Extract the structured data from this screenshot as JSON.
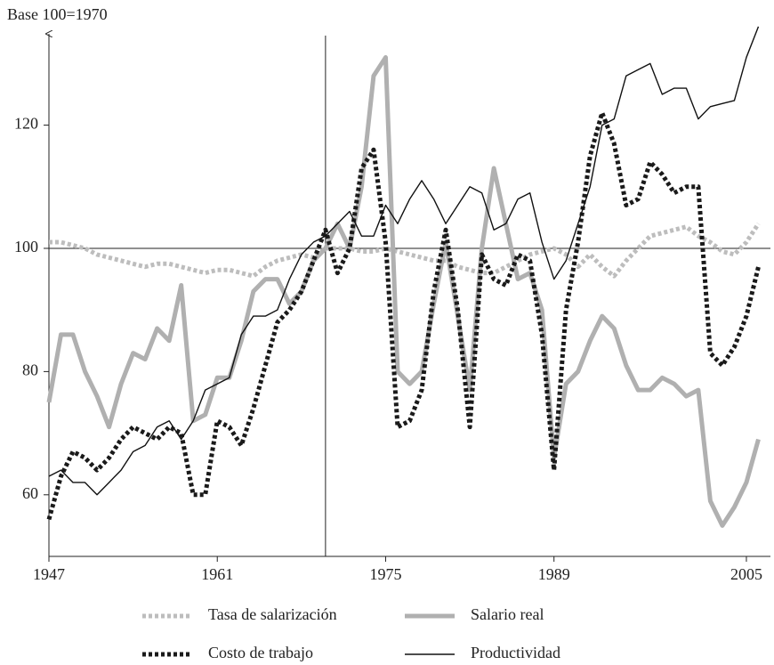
{
  "chart_data": {
    "type": "line",
    "y_label": "Base 100=1970",
    "x": [
      1947,
      1948,
      1949,
      1950,
      1951,
      1952,
      1953,
      1954,
      1955,
      1956,
      1957,
      1958,
      1959,
      1960,
      1961,
      1962,
      1963,
      1964,
      1965,
      1966,
      1967,
      1968,
      1969,
      1970,
      1971,
      1972,
      1973,
      1974,
      1975,
      1976,
      1977,
      1978,
      1979,
      1980,
      1981,
      1982,
      1983,
      1984,
      1985,
      1986,
      1987,
      1988,
      1989,
      1990,
      1991,
      1992,
      1993,
      1994,
      1995,
      1996,
      1997,
      1998,
      1999,
      2000,
      2001,
      2002,
      2003,
      2004,
      2005,
      2006
    ],
    "series": [
      {
        "name": "Tasa de salarización",
        "color": "#bdbdbd",
        "line_style": "dotted",
        "values": [
          101,
          101,
          100.5,
          100,
          99,
          98.5,
          98,
          97.5,
          97,
          97.5,
          97.5,
          97,
          96.5,
          96,
          96.5,
          96.5,
          96,
          95.5,
          97,
          98,
          98.5,
          99,
          98.5,
          100,
          100,
          100,
          99.5,
          99.5,
          100,
          99.5,
          99,
          98.5,
          98,
          98,
          97,
          96.5,
          96,
          96,
          97,
          98,
          99,
          99.5,
          100,
          99,
          97,
          99,
          97,
          95.5,
          98,
          100,
          102,
          102.5,
          103,
          103.5,
          102,
          101,
          99.5,
          99,
          101,
          104
        ]
      },
      {
        "name": "Salario real",
        "color": "#b0b0b0",
        "line_style": "thick",
        "values": [
          75,
          86,
          86,
          80,
          76,
          71,
          78,
          83,
          82,
          87,
          85,
          94,
          72,
          73,
          79,
          79,
          85,
          93,
          95,
          95,
          91,
          93,
          98,
          100,
          104,
          100,
          110,
          128,
          131,
          80,
          78,
          80,
          91,
          101,
          89,
          77,
          100,
          113,
          104,
          95,
          96,
          90,
          66,
          78,
          80,
          85,
          89,
          87,
          81,
          77,
          77,
          79,
          78,
          76,
          77,
          59,
          55,
          58,
          62,
          69
        ]
      },
      {
        "name": "Costo de trabajo",
        "color": "#1a1a1a",
        "line_style": "dotted",
        "values": [
          56,
          63,
          67,
          66,
          64,
          66,
          69,
          71,
          70,
          69,
          71,
          70,
          60,
          60,
          72,
          71,
          68,
          74,
          81,
          88,
          90,
          93,
          98,
          103,
          96,
          100,
          113,
          116,
          101,
          71,
          72,
          77,
          93,
          103,
          90,
          71,
          99,
          95,
          94,
          99,
          98,
          86,
          64,
          90,
          101,
          115,
          122,
          117,
          107,
          108,
          114,
          112,
          109,
          110,
          110,
          83,
          81,
          84,
          89,
          97
        ]
      },
      {
        "name": "Productividad",
        "color": "#111111",
        "line_style": "solid",
        "values": [
          63,
          64,
          62,
          62,
          60,
          62,
          64,
          67,
          68,
          71,
          72,
          69,
          72,
          77,
          78,
          79,
          86,
          89,
          89,
          90,
          95,
          99,
          101,
          102,
          104,
          106,
          102,
          102,
          107,
          104,
          108,
          111,
          108,
          104,
          107,
          110,
          109,
          103,
          104,
          108,
          109,
          101,
          95,
          98,
          104,
          110,
          120,
          121,
          128,
          129,
          130,
          125,
          126,
          126,
          121,
          123,
          123.5,
          124,
          131,
          136
        ]
      }
    ],
    "xlim": [
      1947,
      2007
    ],
    "xticks": [
      1947,
      1961,
      1975,
      1989,
      2005
    ],
    "ylim": [
      50,
      138
    ],
    "yticks": [
      60,
      80,
      100,
      120
    ],
    "reference_lines": {
      "x": 1970,
      "y": 100
    }
  }
}
